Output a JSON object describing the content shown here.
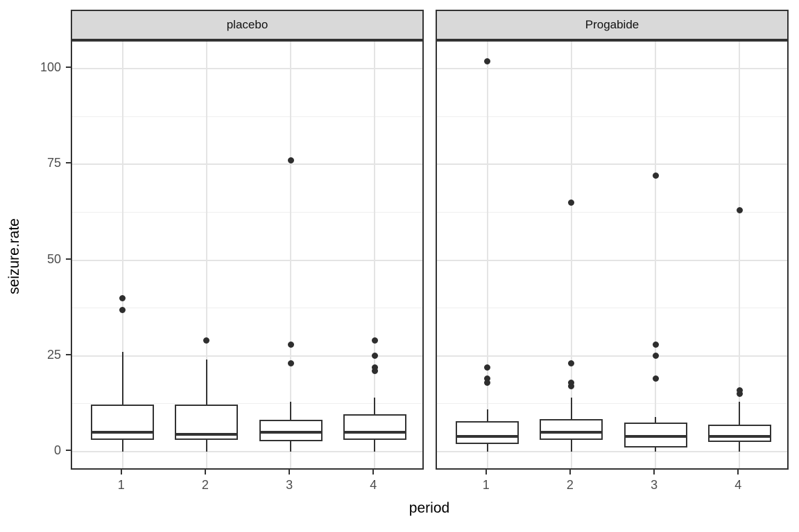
{
  "chart_data": {
    "type": "boxplot",
    "title": "",
    "xlabel": "period",
    "ylabel": "seizure.rate",
    "x_categories": [
      "1",
      "2",
      "3",
      "4"
    ],
    "y_ticks": [
      0,
      25,
      50,
      75,
      100
    ],
    "y_minor_ticks": [
      12.5,
      37.5,
      62.5,
      87.5
    ],
    "ylim": [
      -5.1,
      107.1
    ],
    "grid": true,
    "legend": false,
    "facets": [
      {
        "label": "placebo",
        "boxes": [
          {
            "category": "1",
            "whisker_low": 0,
            "q1": 3,
            "median": 5,
            "q3": 12.25,
            "whisker_high": 26,
            "outliers": [
              37,
              40
            ]
          },
          {
            "category": "2",
            "whisker_low": 0,
            "q1": 3,
            "median": 4.5,
            "q3": 12.25,
            "whisker_high": 24,
            "outliers": [
              29
            ]
          },
          {
            "category": "3",
            "whisker_low": 0,
            "q1": 2.75,
            "median": 5,
            "q3": 8.25,
            "whisker_high": 13,
            "outliers": [
              23,
              28,
              76
            ]
          },
          {
            "category": "4",
            "whisker_low": 0,
            "q1": 3,
            "median": 5,
            "q3": 9.75,
            "whisker_high": 14,
            "outliers": [
              21,
              22,
              25,
              29
            ]
          }
        ]
      },
      {
        "label": "Progabide",
        "boxes": [
          {
            "category": "1",
            "whisker_low": 0,
            "q1": 2,
            "median": 4,
            "q3": 8,
            "whisker_high": 11,
            "outliers": [
              18,
              19,
              22,
              102
            ]
          },
          {
            "category": "2",
            "whisker_low": 0,
            "q1": 3,
            "median": 5,
            "q3": 8.5,
            "whisker_high": 14,
            "outliers": [
              17,
              18,
              23,
              65
            ]
          },
          {
            "category": "3",
            "whisker_low": 0,
            "q1": 1,
            "median": 4,
            "q3": 7.5,
            "whisker_high": 9,
            "outliers": [
              19,
              25,
              28,
              72
            ]
          },
          {
            "category": "4",
            "whisker_low": 0,
            "q1": 2.5,
            "median": 4,
            "q3": 7,
            "whisker_high": 13,
            "outliers": [
              15,
              16,
              63
            ]
          }
        ]
      }
    ],
    "colors": {
      "stroke": "#333333",
      "strip_fill": "#d9d9d9",
      "panel_bg": "#ffffff",
      "grid_major": "#e4e4e4",
      "grid_minor": "#efefef",
      "axis_text": "#4d4d4d",
      "title_text": "#000000"
    }
  }
}
